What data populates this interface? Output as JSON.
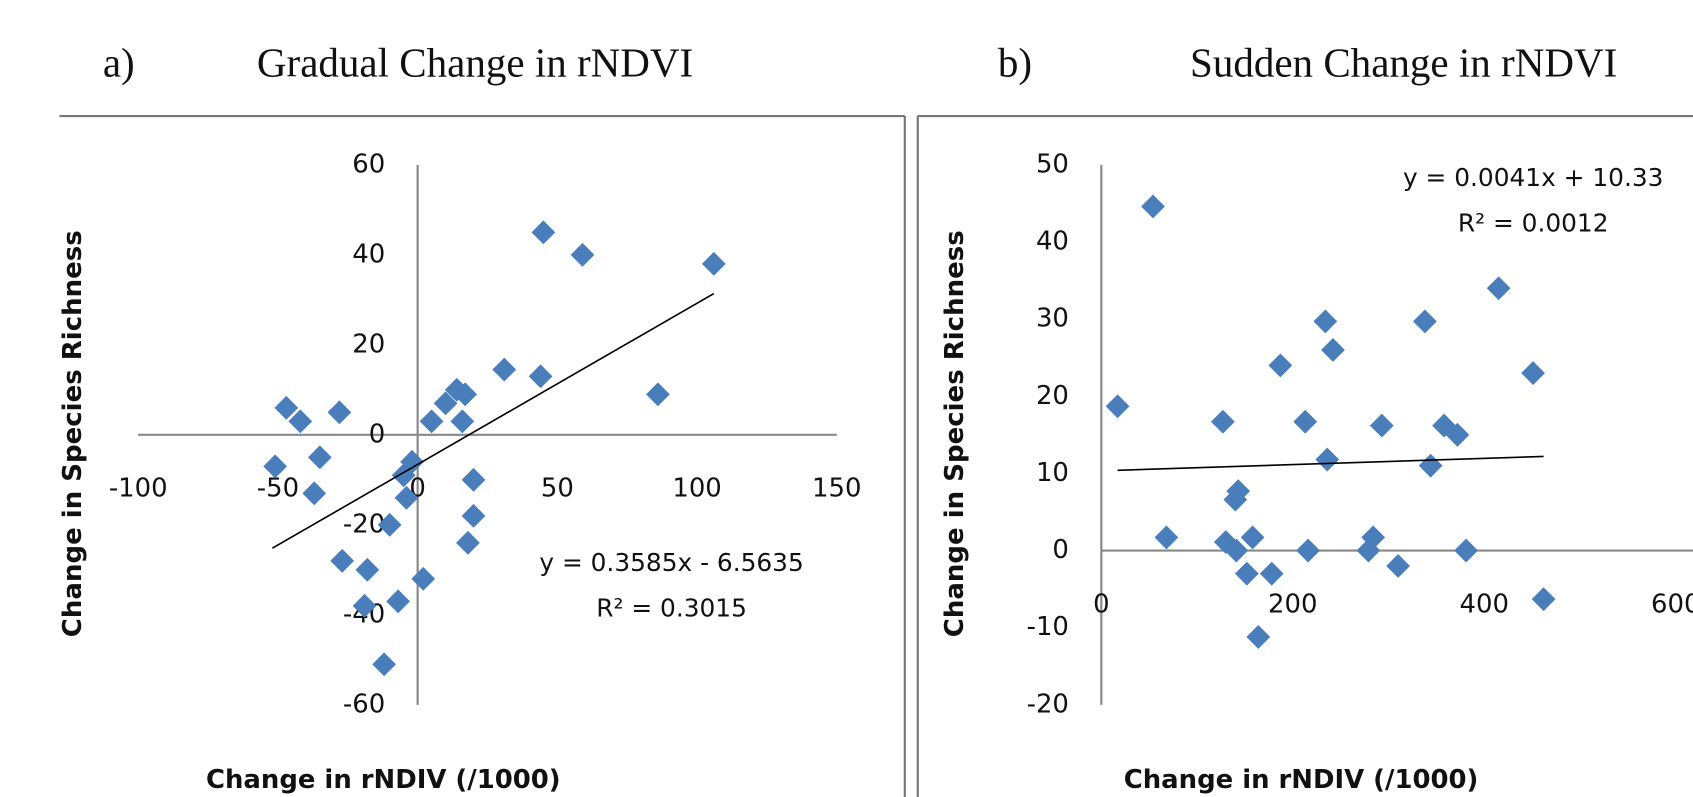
{
  "chart_data": [
    {
      "type": "scatter",
      "panel_label": "a)",
      "title": "Gradual Change in rNDVI",
      "x_label": "Change in rNDIV (/1000)",
      "y_label": "Change in Species Richness",
      "color": "#4a7ebb",
      "x": [
        45,
        59,
        106,
        31,
        44,
        86,
        -47,
        -42,
        -28,
        -35,
        -51,
        -37,
        5,
        10,
        14,
        17,
        16,
        -2,
        -5,
        -4,
        20,
        20,
        18,
        -10,
        -27,
        -18,
        2,
        -19,
        -7,
        -12
      ],
      "values": [
        45,
        40,
        38,
        14.5,
        13,
        9,
        6,
        3,
        5,
        -5,
        -7,
        -13,
        3,
        7,
        10,
        9,
        3,
        -6,
        -9,
        -14,
        -10,
        -18,
        -24,
        -20,
        -28,
        -30,
        -32,
        -38,
        -37,
        -51
      ],
      "xlim": [
        -100,
        150
      ],
      "ylim": [
        -60,
        60
      ],
      "xticks": [
        -100,
        -50,
        0,
        50,
        100,
        150
      ],
      "yticks": [
        -60,
        -40,
        -20,
        0,
        20,
        40,
        60
      ],
      "trendline": {
        "equation": "y = 0.3585x - 6.5635",
        "r_squared": "R² = 0.3015",
        "x": [
          -52,
          106
        ],
        "values": [
          -25.2,
          31.4
        ]
      }
    },
    {
      "type": "scatter",
      "panel_label": "b)",
      "title": "Sudden Change in rNDVI",
      "x_label": "Change in rNDIV (/1000)",
      "y_label": "Change in Species Richness",
      "color": "#4a7ebb",
      "x": [
        17,
        54,
        68,
        127,
        130,
        141,
        143,
        140,
        152,
        158,
        164,
        178,
        187,
        213,
        216,
        234,
        236,
        242,
        279,
        284,
        293,
        310,
        338,
        344,
        358,
        372,
        381,
        415,
        451,
        462
      ],
      "values": [
        18.7,
        44.6,
        1.7,
        16.7,
        1.1,
        0,
        7.7,
        6.6,
        -3,
        1.7,
        -11.2,
        -3,
        24,
        16.7,
        0,
        29.7,
        11.8,
        26,
        0,
        1.7,
        16.2,
        -2,
        29.7,
        11,
        16.2,
        15,
        0,
        34,
        23,
        -6.3
      ],
      "xlim": [
        0,
        600
      ],
      "ylim": [
        -20,
        50
      ],
      "xticks": [
        0,
        200,
        400,
        600
      ],
      "yticks": [
        -20,
        -10,
        0,
        10,
        20,
        30,
        40,
        50
      ],
      "trendline": {
        "equation": "y = 0.0041x + 10.33",
        "r_squared": "R² = 0.0012",
        "x": [
          17,
          462
        ],
        "values": [
          10.4,
          12.2
        ]
      }
    }
  ]
}
